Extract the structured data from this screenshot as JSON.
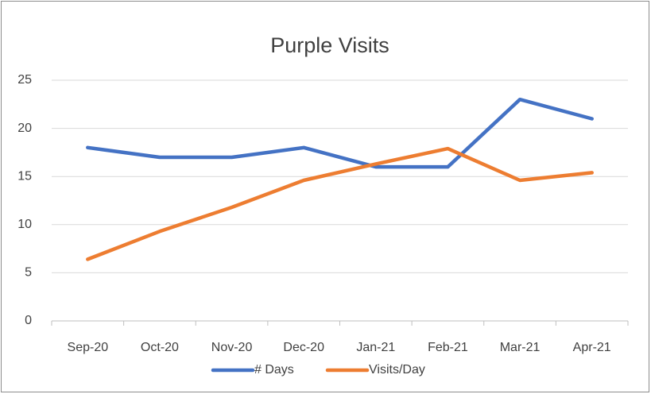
{
  "chart_data": {
    "type": "line",
    "title": "Purple Visits",
    "categories": [
      "Sep-20",
      "Oct-20",
      "Nov-20",
      "Dec-20",
      "Jan-21",
      "Feb-21",
      "Mar-21",
      "Apr-21"
    ],
    "series": [
      {
        "name": "# Days",
        "color": "#4472c4",
        "values": [
          18,
          17,
          17,
          18,
          16,
          16,
          23,
          21
        ]
      },
      {
        "name": "Visits/Day",
        "color": "#ed7d31",
        "values": [
          6.4,
          9.3,
          11.8,
          14.6,
          16.3,
          17.9,
          14.6,
          15.4
        ]
      }
    ],
    "ylim": [
      0,
      25
    ],
    "yticks": [
      0,
      5,
      10,
      15,
      20,
      25
    ],
    "grid": true,
    "legend": "bottom"
  }
}
